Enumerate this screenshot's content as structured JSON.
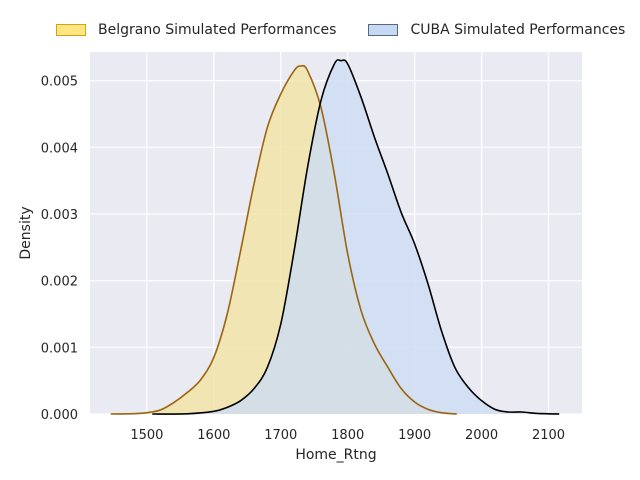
{
  "chart_data": {
    "type": "area",
    "title": "",
    "xlabel": "Home_Rtng",
    "ylabel": "Density",
    "xlim": [
      1415,
      2150
    ],
    "ylim": [
      0,
      0.00543
    ],
    "xticks": [
      "1500",
      "1600",
      "1700",
      "1800",
      "1900",
      "2000",
      "2100"
    ],
    "yticks": [
      "0.000",
      "0.001",
      "0.002",
      "0.003",
      "0.004",
      "0.005"
    ],
    "grid": true,
    "legend_position": "top",
    "series": [
      {
        "name": "Belgrano Simulated Performances",
        "fill_color": "#f2e3a3",
        "line_color": "#9a6410",
        "legend_fill": "#ffe680",
        "legend_edge": "#d4a017",
        "points": [
          [
            1446,
            0
          ],
          [
            1480,
            5e-06
          ],
          [
            1500,
            2e-05
          ],
          [
            1520,
            6e-05
          ],
          [
            1540,
            0.00017
          ],
          [
            1560,
            0.00032
          ],
          [
            1580,
            0.00051
          ],
          [
            1600,
            0.00085
          ],
          [
            1620,
            0.0015
          ],
          [
            1640,
            0.00245
          ],
          [
            1660,
            0.00345
          ],
          [
            1680,
            0.0043
          ],
          [
            1700,
            0.0048
          ],
          [
            1720,
            0.00515
          ],
          [
            1730,
            0.00522
          ],
          [
            1740,
            0.00515
          ],
          [
            1760,
            0.0046
          ],
          [
            1780,
            0.0036
          ],
          [
            1800,
            0.0024
          ],
          [
            1820,
            0.00155
          ],
          [
            1840,
            0.00105
          ],
          [
            1860,
            0.0007
          ],
          [
            1880,
            0.00038
          ],
          [
            1900,
            0.00018
          ],
          [
            1920,
            7e-05
          ],
          [
            1940,
            2e-05
          ],
          [
            1963,
            0
          ]
        ]
      },
      {
        "name": "CUBA Simulated Performances",
        "fill_color": "#cddcf3",
        "line_color": "#000000",
        "legend_fill": "#c5d9f5",
        "legend_edge": "#58677a",
        "points": [
          [
            1508,
            0
          ],
          [
            1560,
            3e-06
          ],
          [
            1600,
            4e-05
          ],
          [
            1620,
            0.0001
          ],
          [
            1640,
            0.0002
          ],
          [
            1660,
            0.00038
          ],
          [
            1680,
            0.0007
          ],
          [
            1700,
            0.00135
          ],
          [
            1720,
            0.00245
          ],
          [
            1740,
            0.0037
          ],
          [
            1760,
            0.0047
          ],
          [
            1780,
            0.00525
          ],
          [
            1790,
            0.0053
          ],
          [
            1800,
            0.00525
          ],
          [
            1820,
            0.00475
          ],
          [
            1840,
            0.00415
          ],
          [
            1860,
            0.0036
          ],
          [
            1880,
            0.00302
          ],
          [
            1900,
            0.00255
          ],
          [
            1920,
            0.00195
          ],
          [
            1940,
            0.00125
          ],
          [
            1960,
            0.0007
          ],
          [
            1980,
            0.0004
          ],
          [
            2000,
            0.0002
          ],
          [
            2020,
            7e-05
          ],
          [
            2040,
            3e-05
          ],
          [
            2060,
            3e-05
          ],
          [
            2080,
            1e-05
          ],
          [
            2100,
            3e-06
          ],
          [
            2116,
            0
          ]
        ]
      }
    ]
  }
}
